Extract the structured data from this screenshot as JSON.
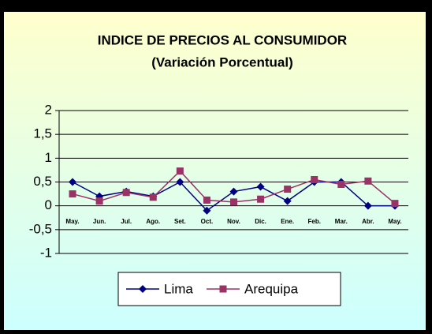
{
  "chart_data": {
    "type": "line",
    "title": "INDICE DE PRECIOS AL CONSUMIDOR",
    "subtitle": "(Variación Porcentual)",
    "categories": [
      "May.",
      "Jun.",
      "Jul.",
      "Ago.",
      "Set.",
      "Oct.",
      "Nov.",
      "Dic.",
      "Ene.",
      "Feb.",
      "Mar.",
      "Abr.",
      "May."
    ],
    "series": [
      {
        "name": "Lima",
        "color": "#000080",
        "marker": "diamond",
        "values": [
          0.5,
          0.2,
          0.3,
          0.2,
          0.5,
          -0.1,
          0.3,
          0.4,
          0.1,
          0.5,
          0.5,
          0.0,
          0.0
        ]
      },
      {
        "name": "Arequipa",
        "color": "#993366",
        "marker": "square",
        "values": [
          0.25,
          0.1,
          0.28,
          0.18,
          0.73,
          0.12,
          0.08,
          0.14,
          0.35,
          0.55,
          0.45,
          0.52,
          0.05
        ]
      }
    ],
    "ylim": [
      -1,
      2
    ],
    "yticks": [
      {
        "value": -1,
        "label": "-1"
      },
      {
        "value": -0.5,
        "label": "-0,5"
      },
      0,
      {
        "value": 0.5,
        "label": "0,5"
      },
      1,
      {
        "value": 1.5,
        "label": "1,5"
      },
      2
    ],
    "grid": true,
    "legend": "bottom"
  }
}
